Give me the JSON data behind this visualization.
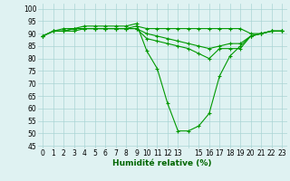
{
  "xlabel": "Humidité relative (%)",
  "ylabel": "",
  "background_color": "#dff2f2",
  "grid_color": "#aad4d4",
  "line_color": "#009900",
  "xlim": [
    -0.5,
    23.5
  ],
  "ylim": [
    44,
    102
  ],
  "yticks": [
    45,
    50,
    55,
    60,
    65,
    70,
    75,
    80,
    85,
    90,
    95,
    100
  ],
  "xtick_labels": [
    "0",
    "1",
    "2",
    "3",
    "4",
    "5",
    "6",
    "7",
    "8",
    "9",
    "10",
    "11",
    "12",
    "13",
    "",
    "15",
    "16",
    "17",
    "18",
    "19",
    "20",
    "21",
    "22",
    "23"
  ],
  "series": [
    [
      89,
      91,
      91,
      92,
      92,
      92,
      92,
      92,
      92,
      93,
      92,
      92,
      92,
      92,
      92,
      92,
      92,
      92,
      92,
      92,
      90,
      90,
      91,
      91
    ],
    [
      89,
      91,
      92,
      92,
      93,
      93,
      93,
      93,
      93,
      94,
      83,
      76,
      62,
      51,
      51,
      53,
      58,
      73,
      81,
      85,
      89,
      90,
      91,
      91
    ],
    [
      89,
      91,
      91,
      92,
      92,
      92,
      92,
      92,
      92,
      92,
      88,
      87,
      86,
      85,
      84,
      82,
      80,
      84,
      84,
      84,
      89,
      90,
      91,
      91
    ],
    [
      89,
      91,
      91,
      91,
      92,
      92,
      92,
      92,
      92,
      92,
      90,
      89,
      88,
      87,
      86,
      85,
      84,
      85,
      86,
      86,
      89,
      90,
      91,
      91
    ]
  ]
}
